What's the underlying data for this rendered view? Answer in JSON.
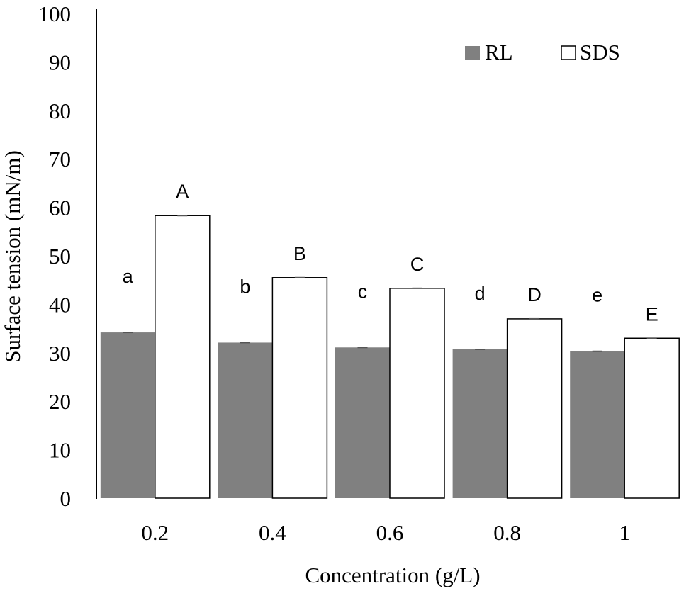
{
  "chart_data": {
    "type": "bar",
    "title": "",
    "xlabel": "Concentration (g/L)",
    "ylabel": "Surface tension (mN/m)",
    "ylim": [
      0,
      100
    ],
    "yticks": [
      "0",
      "10",
      "20",
      "30",
      "40",
      "50",
      "60",
      "70",
      "80",
      "90",
      "100"
    ],
    "categories": [
      "0.2",
      "0.4",
      "0.6",
      "0.8",
      "1"
    ],
    "grid": false,
    "legend_placement": "top-right",
    "series": [
      {
        "name": "RL",
        "color": "#808080",
        "values": [
          34.2,
          32.1,
          31.1,
          30.7,
          30.3
        ],
        "letters": [
          "a",
          "b",
          "c",
          "d",
          "e"
        ]
      },
      {
        "name": "SDS",
        "color": "#ffffff",
        "values": [
          58.3,
          45.5,
          43.3,
          37.0,
          33.0
        ],
        "letters": [
          "A",
          "B",
          "C",
          "D",
          "E"
        ]
      }
    ]
  }
}
